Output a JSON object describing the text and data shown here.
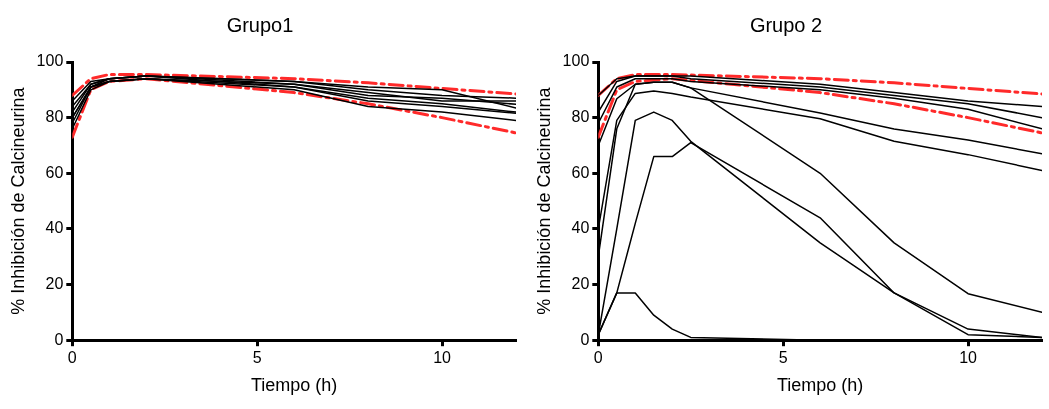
{
  "chart_data": [
    {
      "type": "line",
      "title": "Grupo1",
      "xlabel": "Tiempo (h)",
      "ylabel": "% Inhibición de Calcineurina",
      "xlim": [
        0,
        12
      ],
      "xticks": [
        0,
        5,
        10
      ],
      "ylim": [
        0,
        100
      ],
      "yticks": [
        0,
        20,
        40,
        60,
        80,
        100
      ],
      "grid": false,
      "marker": "none",
      "line_style": "solid",
      "series": [
        {
          "color": "#000000",
          "x": [
            0,
            0.5,
            1,
            2,
            6,
            8,
            10,
            12
          ],
          "values": [
            86,
            93,
            94,
            95,
            93,
            91,
            90,
            83.5
          ]
        },
        {
          "color": "#000000",
          "x": [
            0,
            0.5,
            1,
            2,
            6,
            8,
            10,
            12
          ],
          "values": [
            82,
            92,
            94,
            95,
            93,
            90,
            88,
            87
          ]
        },
        {
          "color": "#000000",
          "x": [
            0,
            0.5,
            1,
            2,
            6,
            8,
            10,
            12
          ],
          "values": [
            80,
            91,
            94,
            95,
            92,
            89,
            86,
            86
          ]
        },
        {
          "color": "#000000",
          "x": [
            0,
            0.5,
            1,
            2,
            6,
            8,
            10,
            12
          ],
          "values": [
            78,
            91,
            93,
            94,
            92,
            88,
            87,
            84.8
          ]
        },
        {
          "color": "#000000",
          "x": [
            0,
            0.5,
            1,
            2,
            6,
            8,
            10,
            12
          ],
          "values": [
            76,
            90,
            93,
            94,
            91,
            87,
            85,
            82
          ]
        },
        {
          "color": "#000000",
          "x": [
            0,
            0.5,
            1,
            2,
            6,
            8,
            10,
            12
          ],
          "values": [
            84,
            92,
            94,
            95,
            91,
            86,
            84,
            81.6
          ]
        },
        {
          "color": "#000000",
          "x": [
            0,
            0.5,
            1,
            2,
            6,
            8,
            10,
            12
          ],
          "values": [
            80,
            91,
            93,
            94,
            90,
            84,
            82,
            79
          ]
        },
        {
          "color": "#ff2a2a",
          "line_style": "dashed",
          "x": [
            0,
            0.5,
            1,
            2,
            6,
            8,
            10,
            12
          ],
          "values": [
            88,
            94,
            95.5,
            95.5,
            94,
            92.5,
            90.5,
            88.5
          ]
        },
        {
          "color": "#ff2a2a",
          "line_style": "dashed",
          "x": [
            0,
            0.5,
            1,
            2,
            6,
            8,
            10,
            12
          ],
          "values": [
            73,
            90,
            93,
            94,
            89,
            85,
            80,
            74.5
          ]
        }
      ]
    },
    {
      "type": "line",
      "title": "Grupo 2",
      "xlabel": "Tiempo (h)",
      "ylabel": "% Inhibición de Calcineurina",
      "xlim": [
        0,
        12
      ],
      "xticks": [
        0,
        5,
        10
      ],
      "ylim": [
        0,
        100
      ],
      "yticks": [
        0,
        20,
        40,
        60,
        80,
        100
      ],
      "grid": false,
      "marker": "none",
      "line_style": "solid",
      "series": [
        {
          "color": "#000000",
          "x": [
            0,
            0.5,
            1,
            1.5,
            2,
            2.5,
            6,
            8,
            10,
            12
          ],
          "values": [
            88,
            94,
            95,
            95,
            95,
            95,
            92,
            89,
            86,
            84
          ]
        },
        {
          "color": "#000000",
          "x": [
            0,
            0.5,
            1,
            1.5,
            2,
            2.5,
            6,
            8,
            10,
            12
          ],
          "values": [
            82,
            93,
            95,
            95,
            95,
            94,
            91,
            88,
            85,
            80
          ]
        },
        {
          "color": "#000000",
          "x": [
            0,
            0.5,
            1,
            1.5,
            2,
            2.5,
            6,
            8,
            10,
            12
          ],
          "values": [
            78,
            91,
            94,
            94,
            94,
            93,
            90,
            87,
            83,
            76
          ]
        },
        {
          "color": "#000000",
          "x": [
            0,
            0.5,
            1,
            1.5,
            2,
            2.5,
            6,
            8,
            10,
            12
          ],
          "values": [
            70,
            86.8,
            92,
            92.7,
            92.7,
            90.7,
            81.7,
            75.9,
            72,
            67
          ]
        },
        {
          "color": "#000000",
          "x": [
            0,
            0.5,
            1,
            1.5,
            2,
            2.5,
            6,
            8,
            10,
            12
          ],
          "values": [
            40,
            79,
            88.7,
            89.6,
            88.7,
            87.4,
            79.6,
            71.5,
            66.7,
            61
          ]
        },
        {
          "color": "#000000",
          "x": [
            0,
            0.5,
            1,
            1.5,
            2,
            2.5,
            6,
            8,
            10,
            12
          ],
          "values": [
            30,
            76,
            92,
            92.7,
            92.7,
            90.7,
            60,
            35,
            16.7,
            10
          ]
        },
        {
          "color": "#000000",
          "x": [
            0,
            0.5,
            1,
            1.5,
            2,
            2.5,
            6,
            8,
            10,
            12
          ],
          "values": [
            2,
            40,
            79,
            82,
            79,
            71.5,
            35,
            17,
            2,
            1
          ]
        },
        {
          "color": "#000000",
          "x": [
            0,
            0.5,
            1,
            1.5,
            2,
            2.5,
            6,
            8,
            10,
            12
          ],
          "values": [
            2,
            17,
            42,
            66,
            66,
            71,
            44,
            17,
            4,
            1
          ]
        },
        {
          "color": "#000000",
          "x": [
            0,
            0.5,
            1,
            1.5,
            2,
            2.5,
            6,
            8,
            10,
            12
          ],
          "values": [
            2,
            17,
            17,
            9,
            4,
            1,
            0,
            0,
            0,
            0
          ]
        },
        {
          "color": "#ff2a2a",
          "line_style": "dashed",
          "x": [
            0,
            0.5,
            1,
            2,
            6,
            8,
            10,
            12
          ],
          "values": [
            88,
            94,
            95.5,
            95.5,
            94,
            92.5,
            90.5,
            88.5
          ]
        },
        {
          "color": "#ff2a2a",
          "line_style": "dashed",
          "x": [
            0,
            0.5,
            1,
            2,
            6,
            8,
            10,
            12
          ],
          "values": [
            73,
            90,
            93,
            94,
            89,
            85,
            80,
            74.5
          ]
        }
      ]
    }
  ]
}
